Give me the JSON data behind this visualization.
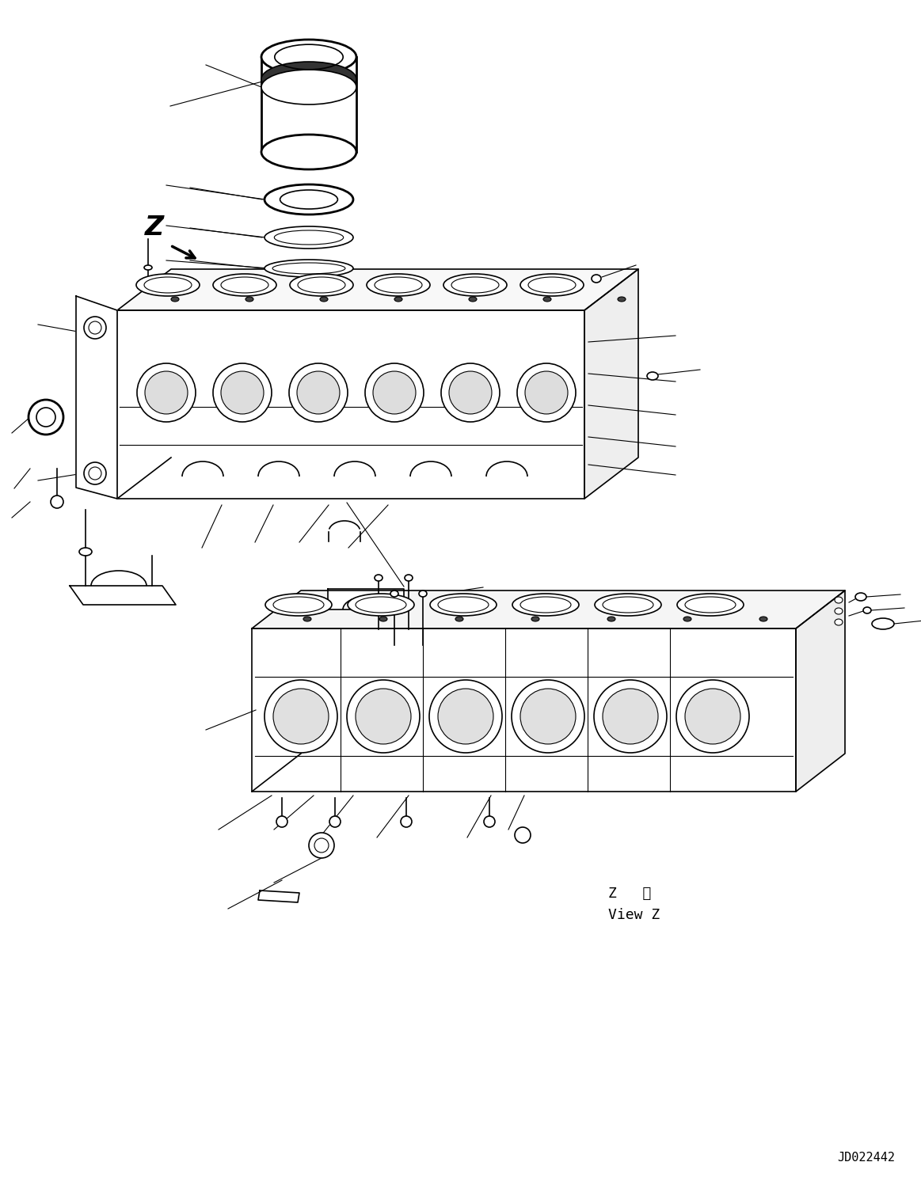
{
  "bg_color": "#ffffff",
  "line_color": "#000000",
  "fig_width": 11.63,
  "fig_height": 14.92,
  "view_z_text1": "Z   視",
  "view_z_text2": "View Z",
  "drawing_number": "JD022442"
}
